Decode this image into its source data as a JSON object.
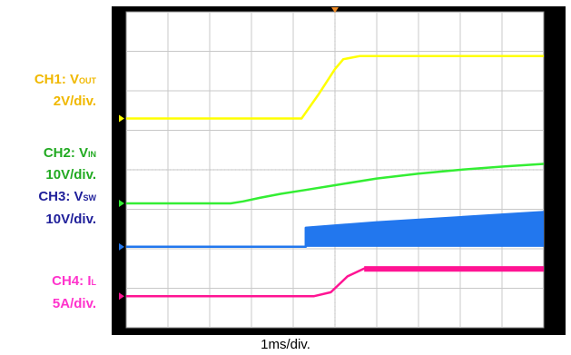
{
  "chart_data": {
    "type": "line",
    "xlabel": "1ms/div.",
    "grid": true,
    "divisions": {
      "x": 10,
      "y": 8
    },
    "series": [
      {
        "name": "CH1: VOUT",
        "unit_label": "2V/div.",
        "color": "#ffff00",
        "ref_div": 5.3,
        "points": [
          [
            0,
            0
          ],
          [
            4.2,
            0
          ],
          [
            4.6,
            0.6
          ],
          [
            5.0,
            1.25
          ],
          [
            5.2,
            1.5
          ],
          [
            5.6,
            1.58
          ],
          [
            10,
            1.58
          ]
        ]
      },
      {
        "name": "CH2: VIN",
        "unit_label": "10V/div.",
        "color": "#33ee33",
        "ref_div": 3.15,
        "points": [
          [
            0,
            0
          ],
          [
            2.5,
            0
          ],
          [
            2.8,
            0.05
          ],
          [
            3.2,
            0.14
          ],
          [
            3.7,
            0.24
          ],
          [
            4.3,
            0.34
          ],
          [
            5.0,
            0.46
          ],
          [
            6.0,
            0.63
          ],
          [
            7.0,
            0.75
          ],
          [
            8.0,
            0.85
          ],
          [
            9.0,
            0.93
          ],
          [
            10,
            1.0
          ]
        ]
      },
      {
        "name": "CH3: VSW",
        "unit_label": "10V/div.",
        "color": "#2277ee",
        "ref_div": 2.05,
        "points": [
          [
            0,
            0
          ],
          [
            4.3,
            0
          ],
          [
            4.3,
            0.48
          ],
          [
            6.0,
            0.62
          ],
          [
            8.0,
            0.75
          ],
          [
            10,
            0.88
          ]
        ]
      },
      {
        "name": "CH4: IL",
        "unit_label": "5A/div.",
        "color": "#ff1493",
        "ref_div": 0.8,
        "points": [
          [
            0,
            0
          ],
          [
            4.5,
            0
          ],
          [
            4.9,
            0.1
          ],
          [
            5.3,
            0.5
          ],
          [
            5.7,
            0.7
          ],
          [
            10,
            0.72
          ]
        ]
      }
    ]
  },
  "labels": {
    "ch1_name": "CH1: V",
    "ch1_sub": "OUT",
    "ch1_scale": "2V/div.",
    "ch2_name": "CH2: V",
    "ch2_sub": "IN",
    "ch2_scale": "10V/div.",
    "ch3_name": "CH3: V",
    "ch3_sub": "SW",
    "ch3_scale": "10V/div.",
    "ch4_name": "CH4: I",
    "ch4_sub": "L",
    "ch4_scale": "5A/div."
  }
}
